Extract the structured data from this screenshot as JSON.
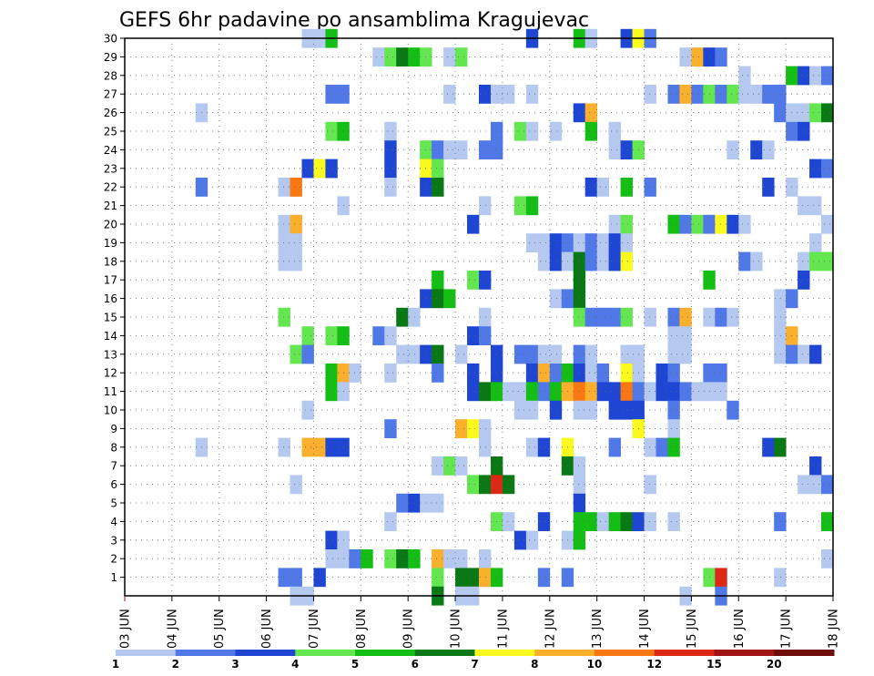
{
  "chart_data": {
    "type": "heatmap",
    "title": "GEFS 6hr padavine po ansamblima Kragujevac",
    "xlabel": "",
    "ylabel": "",
    "x_tick_labels": [
      "03 JUN",
      "04 JUN",
      "05 JUN",
      "06 JUN",
      "07 JUN",
      "08 JUN",
      "09 JUN",
      "10 JUN",
      "11 JUN",
      "12 JUN",
      "13 JUN",
      "14 JUN",
      "15 JUN",
      "16 JUN",
      "17 JUN",
      "18 JUN"
    ],
    "y_tick_labels": [
      "1",
      "2",
      "3",
      "4",
      "5",
      "6",
      "7",
      "8",
      "9",
      "10",
      "11",
      "12",
      "13",
      "14",
      "15",
      "16",
      "17",
      "18",
      "19",
      "20",
      "21",
      "22",
      "23",
      "24",
      "25",
      "26",
      "27",
      "28",
      "29",
      "30"
    ],
    "ylim": [
      0,
      30
    ],
    "x_steps_per_day": 4,
    "n_steps": 60,
    "grid": true,
    "colorbar": {
      "position": "bottom",
      "levels": [
        "1",
        "2",
        "3",
        "4",
        "5",
        "6",
        "7",
        "8",
        "10",
        "12",
        "15",
        "20"
      ],
      "colors": [
        "#b4c8f0",
        "#5078e6",
        "#1e46d2",
        "#64e650",
        "#14be14",
        "#0a7814",
        "#fafa1e",
        "#faaf2d",
        "#fa7814",
        "#dc2814",
        "#a01414",
        "#6e0a0a"
      ]
    },
    "cells": [
      [
        30,
        15,
        1
      ],
      [
        30,
        16,
        1
      ],
      [
        30,
        17,
        5
      ],
      [
        30,
        34,
        3
      ],
      [
        30,
        38,
        5
      ],
      [
        30,
        39,
        1
      ],
      [
        30,
        42,
        3
      ],
      [
        30,
        43,
        7
      ],
      [
        30,
        44,
        2
      ],
      [
        29,
        21,
        1
      ],
      [
        29,
        22,
        4
      ],
      [
        29,
        23,
        6
      ],
      [
        29,
        24,
        5
      ],
      [
        29,
        25,
        4
      ],
      [
        29,
        27,
        1
      ],
      [
        29,
        28,
        4
      ],
      [
        29,
        47,
        1
      ],
      [
        29,
        48,
        8
      ],
      [
        29,
        49,
        3
      ],
      [
        29,
        50,
        2
      ],
      [
        28,
        52,
        1
      ],
      [
        28,
        56,
        5
      ],
      [
        28,
        57,
        3
      ],
      [
        28,
        58,
        1
      ],
      [
        28,
        59,
        2
      ],
      [
        27,
        17,
        2
      ],
      [
        27,
        18,
        2
      ],
      [
        27,
        27,
        1
      ],
      [
        27,
        30,
        3
      ],
      [
        27,
        31,
        1
      ],
      [
        27,
        32,
        1
      ],
      [
        27,
        34,
        1
      ],
      [
        27,
        44,
        1
      ],
      [
        27,
        46,
        2
      ],
      [
        27,
        47,
        8
      ],
      [
        27,
        48,
        2
      ],
      [
        27,
        49,
        4
      ],
      [
        27,
        50,
        2
      ],
      [
        27,
        51,
        4
      ],
      [
        27,
        52,
        1
      ],
      [
        27,
        53,
        1
      ],
      [
        27,
        54,
        2
      ],
      [
        27,
        55,
        2
      ],
      [
        26,
        6,
        1
      ],
      [
        26,
        38,
        3
      ],
      [
        26,
        39,
        8
      ],
      [
        26,
        55,
        2
      ],
      [
        26,
        56,
        1
      ],
      [
        26,
        57,
        1
      ],
      [
        26,
        58,
        4
      ],
      [
        26,
        59,
        6
      ],
      [
        25,
        17,
        4
      ],
      [
        25,
        18,
        5
      ],
      [
        25,
        22,
        1
      ],
      [
        25,
        31,
        2
      ],
      [
        25,
        33,
        4
      ],
      [
        25,
        34,
        1
      ],
      [
        25,
        36,
        1
      ],
      [
        25,
        39,
        5
      ],
      [
        25,
        41,
        1
      ],
      [
        25,
        56,
        2
      ],
      [
        25,
        57,
        3
      ],
      [
        24,
        22,
        3
      ],
      [
        24,
        25,
        4
      ],
      [
        24,
        26,
        2
      ],
      [
        24,
        27,
        1
      ],
      [
        24,
        28,
        1
      ],
      [
        24,
        30,
        2
      ],
      [
        24,
        31,
        2
      ],
      [
        24,
        41,
        1
      ],
      [
        24,
        42,
        3
      ],
      [
        24,
        43,
        4
      ],
      [
        24,
        51,
        1
      ],
      [
        24,
        53,
        3
      ],
      [
        24,
        54,
        1
      ],
      [
        23,
        15,
        3
      ],
      [
        23,
        16,
        7
      ],
      [
        23,
        17,
        3
      ],
      [
        23,
        22,
        3
      ],
      [
        23,
        25,
        7
      ],
      [
        23,
        26,
        4
      ],
      [
        23,
        58,
        3
      ],
      [
        23,
        59,
        2
      ],
      [
        22,
        6,
        2
      ],
      [
        22,
        13,
        1
      ],
      [
        22,
        14,
        9
      ],
      [
        22,
        22,
        1
      ],
      [
        22,
        25,
        3
      ],
      [
        22,
        26,
        6
      ],
      [
        22,
        39,
        3
      ],
      [
        22,
        40,
        1
      ],
      [
        22,
        42,
        5
      ],
      [
        22,
        44,
        2
      ],
      [
        22,
        54,
        3
      ],
      [
        22,
        56,
        1
      ],
      [
        21,
        18,
        1
      ],
      [
        21,
        30,
        1
      ],
      [
        21,
        33,
        4
      ],
      [
        21,
        34,
        5
      ],
      [
        21,
        57,
        1
      ],
      [
        21,
        58,
        1
      ],
      [
        20,
        13,
        1
      ],
      [
        20,
        14,
        8
      ],
      [
        20,
        29,
        3
      ],
      [
        20,
        41,
        1
      ],
      [
        20,
        42,
        4
      ],
      [
        20,
        46,
        5
      ],
      [
        20,
        47,
        2
      ],
      [
        20,
        48,
        4
      ],
      [
        20,
        49,
        2
      ],
      [
        20,
        50,
        7
      ],
      [
        20,
        51,
        3
      ],
      [
        20,
        52,
        1
      ],
      [
        20,
        59,
        1
      ],
      [
        19,
        13,
        1
      ],
      [
        19,
        14,
        1
      ],
      [
        19,
        34,
        1
      ],
      [
        19,
        35,
        1
      ],
      [
        19,
        36,
        3
      ],
      [
        19,
        37,
        2
      ],
      [
        19,
        38,
        1
      ],
      [
        19,
        39,
        2
      ],
      [
        19,
        40,
        1
      ],
      [
        19,
        41,
        3
      ],
      [
        19,
        42,
        1
      ],
      [
        19,
        58,
        1
      ],
      [
        18,
        13,
        1
      ],
      [
        18,
        14,
        1
      ],
      [
        18,
        35,
        1
      ],
      [
        18,
        36,
        3
      ],
      [
        18,
        37,
        1
      ],
      [
        18,
        38,
        6
      ],
      [
        18,
        39,
        2
      ],
      [
        18,
        40,
        1
      ],
      [
        18,
        41,
        3
      ],
      [
        18,
        42,
        7
      ],
      [
        18,
        52,
        2
      ],
      [
        18,
        53,
        1
      ],
      [
        18,
        57,
        1
      ],
      [
        18,
        58,
        4
      ],
      [
        18,
        59,
        4
      ],
      [
        17,
        26,
        5
      ],
      [
        17,
        29,
        4
      ],
      [
        17,
        30,
        3
      ],
      [
        17,
        38,
        6
      ],
      [
        17,
        49,
        5
      ],
      [
        17,
        57,
        3
      ],
      [
        16,
        25,
        3
      ],
      [
        16,
        26,
        6
      ],
      [
        16,
        27,
        5
      ],
      [
        16,
        36,
        1
      ],
      [
        16,
        37,
        2
      ],
      [
        16,
        38,
        6
      ],
      [
        16,
        55,
        1
      ],
      [
        16,
        56,
        2
      ],
      [
        15,
        13,
        4
      ],
      [
        15,
        23,
        6
      ],
      [
        15,
        24,
        1
      ],
      [
        15,
        30,
        1
      ],
      [
        15,
        38,
        4
      ],
      [
        15,
        39,
        2
      ],
      [
        15,
        40,
        2
      ],
      [
        15,
        41,
        2
      ],
      [
        15,
        42,
        4
      ],
      [
        15,
        44,
        1
      ],
      [
        15,
        46,
        2
      ],
      [
        15,
        47,
        8
      ],
      [
        15,
        49,
        1
      ],
      [
        15,
        50,
        2
      ],
      [
        15,
        51,
        1
      ],
      [
        15,
        55,
        1
      ],
      [
        14,
        15,
        4
      ],
      [
        14,
        17,
        4
      ],
      [
        14,
        18,
        5
      ],
      [
        14,
        21,
        2
      ],
      [
        14,
        22,
        1
      ],
      [
        14,
        29,
        3
      ],
      [
        14,
        30,
        2
      ],
      [
        14,
        46,
        1
      ],
      [
        14,
        47,
        1
      ],
      [
        14,
        55,
        1
      ],
      [
        14,
        56,
        8
      ],
      [
        13,
        14,
        4
      ],
      [
        13,
        15,
        2
      ],
      [
        13,
        23,
        1
      ],
      [
        13,
        24,
        1
      ],
      [
        13,
        25,
        3
      ],
      [
        13,
        26,
        6
      ],
      [
        13,
        28,
        1
      ],
      [
        13,
        31,
        3
      ],
      [
        13,
        33,
        2
      ],
      [
        13,
        34,
        2
      ],
      [
        13,
        35,
        1
      ],
      [
        13,
        36,
        1
      ],
      [
        13,
        38,
        2
      ],
      [
        13,
        39,
        1
      ],
      [
        13,
        42,
        1
      ],
      [
        13,
        43,
        1
      ],
      [
        13,
        46,
        1
      ],
      [
        13,
        47,
        1
      ],
      [
        13,
        55,
        1
      ],
      [
        13,
        56,
        2
      ],
      [
        13,
        57,
        1
      ],
      [
        13,
        58,
        3
      ],
      [
        12,
        17,
        5
      ],
      [
        12,
        18,
        8
      ],
      [
        12,
        19,
        1
      ],
      [
        12,
        22,
        1
      ],
      [
        12,
        26,
        2
      ],
      [
        12,
        29,
        3
      ],
      [
        12,
        31,
        3
      ],
      [
        12,
        34,
        3
      ],
      [
        12,
        35,
        8
      ],
      [
        12,
        36,
        2
      ],
      [
        12,
        37,
        5
      ],
      [
        12,
        38,
        3
      ],
      [
        12,
        39,
        1
      ],
      [
        12,
        40,
        2
      ],
      [
        12,
        42,
        7
      ],
      [
        12,
        43,
        1
      ],
      [
        12,
        45,
        3
      ],
      [
        12,
        46,
        2
      ],
      [
        12,
        49,
        2
      ],
      [
        12,
        50,
        2
      ],
      [
        11,
        17,
        5
      ],
      [
        11,
        18,
        1
      ],
      [
        11,
        29,
        3
      ],
      [
        11,
        30,
        6
      ],
      [
        11,
        31,
        5
      ],
      [
        11,
        32,
        1
      ],
      [
        11,
        33,
        1
      ],
      [
        11,
        34,
        5
      ],
      [
        11,
        35,
        2
      ],
      [
        11,
        36,
        5
      ],
      [
        11,
        37,
        8
      ],
      [
        11,
        38,
        9
      ],
      [
        11,
        39,
        8
      ],
      [
        11,
        40,
        3
      ],
      [
        11,
        41,
        3
      ],
      [
        11,
        42,
        9
      ],
      [
        11,
        43,
        2
      ],
      [
        11,
        44,
        1
      ],
      [
        11,
        45,
        3
      ],
      [
        11,
        46,
        3
      ],
      [
        11,
        47,
        2
      ],
      [
        11,
        48,
        1
      ],
      [
        11,
        49,
        1
      ],
      [
        11,
        50,
        1
      ],
      [
        10,
        15,
        1
      ],
      [
        10,
        33,
        1
      ],
      [
        10,
        34,
        1
      ],
      [
        10,
        36,
        3
      ],
      [
        10,
        38,
        1
      ],
      [
        10,
        39,
        1
      ],
      [
        10,
        41,
        3
      ],
      [
        10,
        42,
        3
      ],
      [
        10,
        43,
        3
      ],
      [
        10,
        46,
        2
      ],
      [
        10,
        51,
        2
      ],
      [
        9,
        22,
        2
      ],
      [
        9,
        28,
        8
      ],
      [
        9,
        29,
        7
      ],
      [
        9,
        30,
        1
      ],
      [
        9,
        43,
        7
      ],
      [
        9,
        46,
        1
      ],
      [
        8,
        6,
        1
      ],
      [
        8,
        13,
        1
      ],
      [
        8,
        15,
        8
      ],
      [
        8,
        16,
        8
      ],
      [
        8,
        17,
        3
      ],
      [
        8,
        18,
        3
      ],
      [
        8,
        30,
        1
      ],
      [
        8,
        34,
        1
      ],
      [
        8,
        35,
        3
      ],
      [
        8,
        37,
        7
      ],
      [
        8,
        41,
        2
      ],
      [
        8,
        44,
        1
      ],
      [
        8,
        45,
        2
      ],
      [
        8,
        46,
        5
      ],
      [
        8,
        54,
        3
      ],
      [
        8,
        55,
        6
      ],
      [
        7,
        26,
        1
      ],
      [
        7,
        27,
        4
      ],
      [
        7,
        28,
        1
      ],
      [
        7,
        31,
        6
      ],
      [
        7,
        37,
        6
      ],
      [
        7,
        38,
        1
      ],
      [
        7,
        58,
        3
      ],
      [
        6,
        14,
        1
      ],
      [
        6,
        29,
        4
      ],
      [
        6,
        30,
        6
      ],
      [
        6,
        31,
        10
      ],
      [
        6,
        32,
        6
      ],
      [
        6,
        38,
        1
      ],
      [
        6,
        44,
        1
      ],
      [
        6,
        57,
        1
      ],
      [
        6,
        58,
        1
      ],
      [
        6,
        59,
        2
      ],
      [
        5,
        23,
        2
      ],
      [
        5,
        24,
        3
      ],
      [
        5,
        25,
        1
      ],
      [
        5,
        26,
        1
      ],
      [
        5,
        38,
        3
      ],
      [
        4,
        22,
        1
      ],
      [
        4,
        31,
        4
      ],
      [
        4,
        32,
        1
      ],
      [
        4,
        35,
        3
      ],
      [
        4,
        38,
        5
      ],
      [
        4,
        39,
        5
      ],
      [
        4,
        40,
        1
      ],
      [
        4,
        41,
        5
      ],
      [
        4,
        42,
        6
      ],
      [
        4,
        43,
        3
      ],
      [
        4,
        44,
        1
      ],
      [
        4,
        46,
        1
      ],
      [
        4,
        55,
        2
      ],
      [
        4,
        59,
        5
      ],
      [
        3,
        17,
        3
      ],
      [
        3,
        18,
        1
      ],
      [
        3,
        33,
        3
      ],
      [
        3,
        34,
        1
      ],
      [
        3,
        37,
        1
      ],
      [
        3,
        38,
        5
      ],
      [
        2,
        17,
        1
      ],
      [
        2,
        18,
        1
      ],
      [
        2,
        19,
        2
      ],
      [
        2,
        20,
        5
      ],
      [
        2,
        22,
        4
      ],
      [
        2,
        23,
        6
      ],
      [
        2,
        24,
        5
      ],
      [
        2,
        26,
        8
      ],
      [
        2,
        27,
        1
      ],
      [
        2,
        28,
        1
      ],
      [
        2,
        30,
        1
      ],
      [
        2,
        59,
        1
      ],
      [
        1,
        13,
        2
      ],
      [
        1,
        14,
        2
      ],
      [
        1,
        16,
        3
      ],
      [
        1,
        26,
        4
      ],
      [
        1,
        28,
        6
      ],
      [
        1,
        29,
        6
      ],
      [
        1,
        30,
        8
      ],
      [
        1,
        31,
        5
      ],
      [
        1,
        35,
        2
      ],
      [
        1,
        37,
        2
      ],
      [
        1,
        49,
        4
      ],
      [
        1,
        50,
        10
      ],
      [
        1,
        55,
        1
      ],
      [
        0,
        14,
        1
      ],
      [
        0,
        15,
        1
      ],
      [
        0,
        26,
        6
      ],
      [
        0,
        28,
        1
      ],
      [
        0,
        29,
        1
      ],
      [
        0,
        47,
        1
      ],
      [
        0,
        50,
        2
      ]
    ]
  }
}
